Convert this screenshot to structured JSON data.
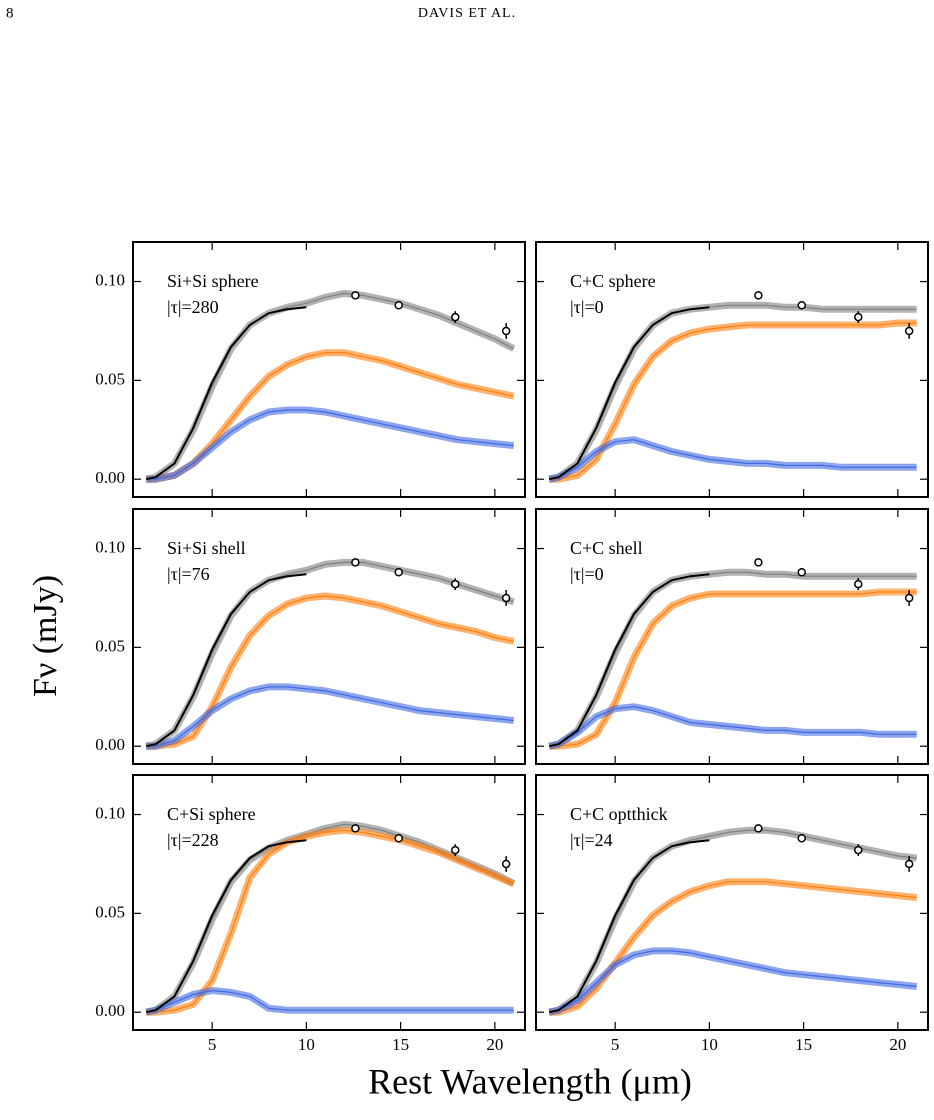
{
  "header": {
    "page": "8",
    "running_head": "DAVIS ET AL."
  },
  "figure": {
    "xlabel": "Rest Wavelength (μm)",
    "ylabel": "Fν (mJy)",
    "xlim": [
      0.8,
      21.6
    ],
    "ylim": [
      -0.009,
      0.12
    ],
    "xticks": [
      5,
      10,
      15,
      20
    ],
    "yticks": [
      {
        "value": 0,
        "label": "0.00"
      },
      0.05,
      {
        "value": 0.1,
        "label": "0.10"
      }
    ],
    "spectrum": {
      "color": "#000000",
      "x": [
        1.5,
        2,
        3,
        4,
        5,
        6,
        7,
        8,
        9,
        10
      ],
      "values": [
        0,
        0.001,
        0.008,
        0.026,
        0.049,
        0.067,
        0.078,
        0.084,
        0.086,
        0.087
      ]
    },
    "photometry": {
      "color": "#000000",
      "x": [
        12.6,
        14.9,
        17.9,
        20.6
      ],
      "values": [
        0.093,
        0.088,
        0.082,
        0.075
      ],
      "errors": [
        0.002,
        0.002,
        0.003,
        0.004
      ]
    }
  },
  "chart_data": [
    {
      "type": "line",
      "title": "Si+Si sphere",
      "annotation": "|τ|=280",
      "x": [
        1.5,
        2,
        3,
        4,
        5,
        6,
        7,
        8,
        9,
        10,
        11,
        12,
        13,
        14,
        15,
        16,
        17,
        18,
        19,
        20,
        21
      ],
      "series": [
        {
          "color": "#7f7f7f",
          "values": [
            0,
            0.001,
            0.008,
            0.025,
            0.047,
            0.066,
            0.078,
            0.084,
            0.087,
            0.089,
            0.092,
            0.094,
            0.093,
            0.091,
            0.089,
            0.086,
            0.083,
            0.079,
            0.075,
            0.071,
            0.066
          ]
        },
        {
          "color": "#ff7f0e",
          "values": [
            0,
            0,
            0.002,
            0.008,
            0.018,
            0.03,
            0.042,
            0.052,
            0.058,
            0.062,
            0.064,
            0.064,
            0.062,
            0.06,
            0.057,
            0.054,
            0.051,
            0.048,
            0.046,
            0.044,
            0.042
          ]
        },
        {
          "color": "#4169e1",
          "values": [
            0,
            0,
            0.002,
            0.008,
            0.016,
            0.024,
            0.03,
            0.034,
            0.035,
            0.035,
            0.034,
            0.032,
            0.03,
            0.028,
            0.026,
            0.024,
            0.022,
            0.02,
            0.019,
            0.018,
            0.017
          ]
        }
      ]
    },
    {
      "type": "line",
      "title": "C+C sphere",
      "annotation": "|τ|=0",
      "x": [
        1.5,
        2,
        3,
        4,
        5,
        6,
        7,
        8,
        9,
        10,
        11,
        12,
        13,
        14,
        15,
        16,
        17,
        18,
        19,
        20,
        21
      ],
      "series": [
        {
          "color": "#7f7f7f",
          "values": [
            0,
            0.001,
            0.008,
            0.025,
            0.047,
            0.066,
            0.078,
            0.084,
            0.086,
            0.087,
            0.088,
            0.088,
            0.088,
            0.087,
            0.087,
            0.086,
            0.086,
            0.086,
            0.086,
            0.086,
            0.086
          ]
        },
        {
          "color": "#ff7f0e",
          "values": [
            0,
            0,
            0.002,
            0.01,
            0.028,
            0.048,
            0.062,
            0.07,
            0.074,
            0.076,
            0.077,
            0.078,
            0.078,
            0.078,
            0.078,
            0.078,
            0.078,
            0.078,
            0.078,
            0.079,
            0.079
          ]
        },
        {
          "color": "#4169e1",
          "values": [
            0,
            0.001,
            0.006,
            0.014,
            0.019,
            0.02,
            0.017,
            0.014,
            0.012,
            0.01,
            0.009,
            0.008,
            0.008,
            0.007,
            0.007,
            0.007,
            0.006,
            0.006,
            0.006,
            0.006,
            0.006
          ]
        }
      ]
    },
    {
      "type": "line",
      "title": "Si+Si shell",
      "annotation": "|τ|=76",
      "x": [
        1.5,
        2,
        3,
        4,
        5,
        6,
        7,
        8,
        9,
        10,
        11,
        12,
        13,
        14,
        15,
        16,
        17,
        18,
        19,
        20,
        21
      ],
      "series": [
        {
          "color": "#7f7f7f",
          "values": [
            0,
            0.001,
            0.008,
            0.025,
            0.047,
            0.066,
            0.078,
            0.084,
            0.087,
            0.089,
            0.092,
            0.093,
            0.093,
            0.091,
            0.089,
            0.087,
            0.085,
            0.082,
            0.079,
            0.076,
            0.073
          ]
        },
        {
          "color": "#ff7f0e",
          "values": [
            0,
            0,
            0.001,
            0.005,
            0.02,
            0.04,
            0.056,
            0.066,
            0.072,
            0.075,
            0.076,
            0.075,
            0.073,
            0.071,
            0.068,
            0.065,
            0.062,
            0.06,
            0.058,
            0.055,
            0.053
          ]
        },
        {
          "color": "#4169e1",
          "values": [
            0,
            0,
            0.003,
            0.01,
            0.018,
            0.024,
            0.028,
            0.03,
            0.03,
            0.029,
            0.028,
            0.026,
            0.024,
            0.022,
            0.02,
            0.018,
            0.017,
            0.016,
            0.015,
            0.014,
            0.013
          ]
        }
      ]
    },
    {
      "type": "line",
      "title": "C+C shell",
      "annotation": "|τ|=0",
      "x": [
        1.5,
        2,
        3,
        4,
        5,
        6,
        7,
        8,
        9,
        10,
        11,
        12,
        13,
        14,
        15,
        16,
        17,
        18,
        19,
        20,
        21
      ],
      "series": [
        {
          "color": "#7f7f7f",
          "values": [
            0,
            0.001,
            0.008,
            0.025,
            0.047,
            0.066,
            0.078,
            0.084,
            0.086,
            0.087,
            0.088,
            0.088,
            0.087,
            0.087,
            0.086,
            0.086,
            0.086,
            0.086,
            0.086,
            0.086,
            0.086
          ]
        },
        {
          "color": "#ff7f0e",
          "values": [
            0,
            0,
            0.001,
            0.006,
            0.022,
            0.045,
            0.062,
            0.071,
            0.075,
            0.077,
            0.077,
            0.077,
            0.077,
            0.077,
            0.077,
            0.077,
            0.077,
            0.077,
            0.078,
            0.078,
            0.078
          ]
        },
        {
          "color": "#4169e1",
          "values": [
            0,
            0.001,
            0.007,
            0.015,
            0.019,
            0.02,
            0.018,
            0.015,
            0.012,
            0.011,
            0.01,
            0.009,
            0.008,
            0.008,
            0.007,
            0.007,
            0.007,
            0.007,
            0.006,
            0.006,
            0.006
          ]
        }
      ]
    },
    {
      "type": "line",
      "title": "C+Si sphere",
      "annotation": "|τ|=228",
      "x": [
        1.5,
        2,
        3,
        4,
        5,
        6,
        7,
        8,
        9,
        10,
        11,
        12,
        13,
        14,
        15,
        16,
        17,
        18,
        19,
        20,
        21
      ],
      "series": [
        {
          "color": "#7f7f7f",
          "values": [
            0,
            0.001,
            0.008,
            0.025,
            0.047,
            0.066,
            0.077,
            0.083,
            0.087,
            0.09,
            0.093,
            0.095,
            0.094,
            0.092,
            0.089,
            0.086,
            0.082,
            0.078,
            0.074,
            0.07,
            0.065
          ]
        },
        {
          "color": "#ff7f0e",
          "values": [
            0,
            0,
            0.001,
            0.004,
            0.016,
            0.04,
            0.068,
            0.08,
            0.086,
            0.089,
            0.091,
            0.092,
            0.091,
            0.089,
            0.087,
            0.084,
            0.081,
            0.077,
            0.073,
            0.069,
            0.065
          ]
        },
        {
          "color": "#4169e1",
          "values": [
            0,
            0.001,
            0.005,
            0.009,
            0.011,
            0.01,
            0.008,
            0.002,
            0.001,
            0.001,
            0.001,
            0.001,
            0.001,
            0.001,
            0.001,
            0.001,
            0.001,
            0.001,
            0.001,
            0.001,
            0.001
          ]
        }
      ]
    },
    {
      "type": "line",
      "title": "C+C optthick",
      "annotation": "|τ|=24",
      "x": [
        1.5,
        2,
        3,
        4,
        5,
        6,
        7,
        8,
        9,
        10,
        11,
        12,
        13,
        14,
        15,
        16,
        17,
        18,
        19,
        20,
        21
      ],
      "series": [
        {
          "color": "#7f7f7f",
          "values": [
            0,
            0.001,
            0.008,
            0.025,
            0.047,
            0.066,
            0.078,
            0.084,
            0.087,
            0.089,
            0.091,
            0.092,
            0.092,
            0.091,
            0.089,
            0.087,
            0.085,
            0.083,
            0.081,
            0.079,
            0.078
          ]
        },
        {
          "color": "#ff7f0e",
          "values": [
            0,
            0,
            0.003,
            0.012,
            0.025,
            0.038,
            0.049,
            0.056,
            0.061,
            0.064,
            0.066,
            0.066,
            0.066,
            0.065,
            0.064,
            0.063,
            0.062,
            0.061,
            0.06,
            0.059,
            0.058
          ]
        },
        {
          "color": "#4169e1",
          "values": [
            0,
            0.001,
            0.006,
            0.015,
            0.024,
            0.029,
            0.031,
            0.031,
            0.03,
            0.028,
            0.026,
            0.024,
            0.022,
            0.02,
            0.019,
            0.018,
            0.017,
            0.016,
            0.015,
            0.014,
            0.013
          ]
        }
      ]
    }
  ]
}
